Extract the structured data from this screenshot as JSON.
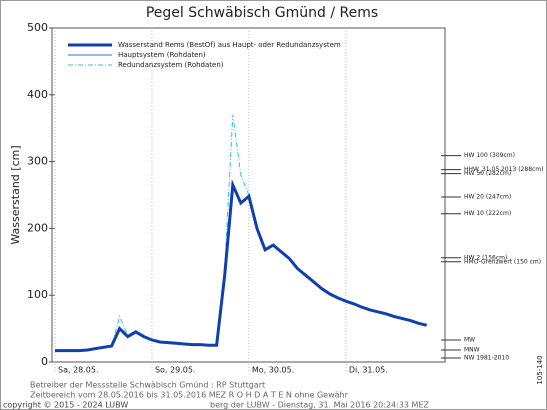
{
  "chart_data": {
    "type": "line",
    "title": "Pegel Schwäbisch Gmünd / Rems",
    "y_label": "Wasserstand [cm]",
    "categories": [
      "Sa, 28.05.",
      null,
      null,
      null,
      null,
      null,
      null,
      null,
      null,
      null,
      null,
      null,
      "So, 29.05.",
      null,
      null,
      null,
      null,
      null,
      null,
      null,
      null,
      null,
      null,
      null,
      "Mo, 30.05.",
      null,
      null,
      null,
      null,
      null,
      null,
      null,
      null,
      null,
      null,
      null,
      "Di, 31.05.",
      null,
      null,
      null,
      null,
      null,
      null,
      null,
      null,
      null,
      null
    ],
    "series": [
      {
        "name": "Wasserstand Rems (BestOf) aus Haupt- oder Redundanzsystem",
        "color": "#1040b0",
        "width": 3,
        "dash": "none",
        "values": [
          17,
          17,
          17,
          17,
          18,
          20,
          22,
          24,
          50,
          38,
          45,
          38,
          33,
          30,
          29,
          28,
          27,
          26,
          26,
          25,
          25,
          130,
          265,
          238,
          248,
          200,
          168,
          175,
          165,
          155,
          140,
          130,
          120,
          110,
          102,
          96,
          91,
          87,
          82,
          78,
          75,
          72,
          68,
          65,
          62,
          58,
          55
        ]
      },
      {
        "name": "Hauptsystem (Rohdaten)",
        "color": "#3070e0",
        "width": 1,
        "dash": "none",
        "values": [
          17,
          17,
          17,
          17,
          18,
          20,
          22,
          24,
          50,
          38,
          45,
          38,
          33,
          30,
          29,
          28,
          27,
          26,
          26,
          25,
          25,
          130,
          265,
          238,
          248,
          200,
          168,
          175,
          165,
          155,
          140,
          130,
          120,
          110,
          102,
          96,
          91,
          87,
          82,
          78,
          75,
          72,
          68,
          65,
          62,
          58,
          55
        ]
      },
      {
        "name": "Redundanzsystem (Rohdaten)",
        "color": "#30c0e0",
        "width": 1,
        "dash": "5 2 1 2",
        "values": [
          17,
          17,
          17,
          17,
          18,
          20,
          22,
          24,
          68,
          40,
          47,
          38,
          33,
          30,
          29,
          28,
          27,
          26,
          26,
          25,
          25,
          140,
          370,
          280,
          250,
          200,
          168,
          175,
          165,
          155,
          140,
          130,
          120,
          110,
          102,
          96,
          91,
          87,
          82,
          78,
          75,
          72,
          68,
          65,
          62,
          58,
          55
        ]
      }
    ],
    "ylim": [
      0,
      500
    ],
    "yticks": [
      0,
      100,
      200,
      300,
      400,
      500
    ],
    "levels": [
      {
        "label": "HW 100 (309cm)",
        "value": 309
      },
      {
        "label": "HHW_31.05.2013 (288cm)",
        "value": 288
      },
      {
        "label": "HW 50 (282cm)",
        "value": 282
      },
      {
        "label": "HW 20 (247cm)",
        "value": 247
      },
      {
        "label": "HW 10 (222cm)",
        "value": 222
      },
      {
        "label": "HW 2 (156cm)",
        "value": 156
      },
      {
        "label": "HMO-Grenzwert (150 cm)",
        "value": 150
      },
      {
        "label": "MW",
        "value": 33
      },
      {
        "label": "MNW",
        "value": 18
      },
      {
        "label": "NW 1981-2010",
        "value": 6
      }
    ],
    "footer": [
      "Betreiber der Messstelle Schwäbisch Gmünd : RP Stuttgart",
      "Zeitbereich vom 28.05.2016 bis 31.05.2016    MEZ    R O H D A T E N  ohne Gewähr",
      "copyright © 2015 - 2024 LUBW",
      "berg der LUBW - Dienstag, 31. Mai 2016 20:24:33 MEZ"
    ],
    "side_label": "105-140"
  }
}
